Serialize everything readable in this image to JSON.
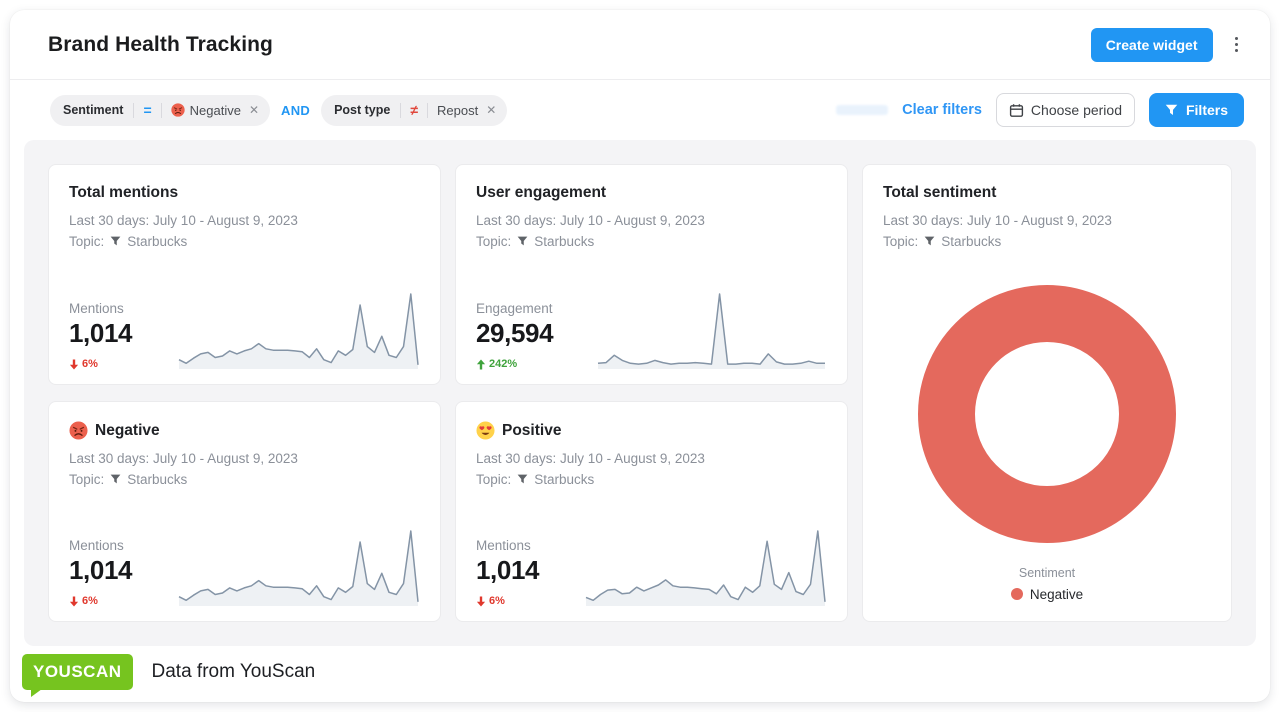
{
  "header": {
    "title": "Brand Health Tracking",
    "create_widget_label": "Create widget"
  },
  "filter_bar": {
    "chips": [
      {
        "field": "Sentiment",
        "operator": "=",
        "value": "Negative",
        "value_icon": "angry-face-emoji",
        "close": "✕"
      },
      {
        "field": "Post type",
        "operator": "≠",
        "value": "Repost",
        "close": "✕"
      }
    ],
    "conjunction": "AND",
    "clear_filters_label": "Clear filters",
    "choose_period_label": "Choose period",
    "filters_label": "Filters"
  },
  "widgets": {
    "total_mentions": {
      "title": "Total mentions",
      "period": "Last 30 days: July 10 - August 9, 2023",
      "topic_label": "Topic:",
      "topic": "Starbucks",
      "metric_label": "Mentions",
      "value": "1,014",
      "delta": "6%",
      "delta_direction": "down"
    },
    "user_engagement": {
      "title": "User engagement",
      "period": "Last 30 days: July 10 - August 9, 2023",
      "topic_label": "Topic:",
      "topic": "Starbucks",
      "metric_label": "Engagement",
      "value": "29,594",
      "delta": "242%",
      "delta_direction": "up"
    },
    "total_sentiment": {
      "title": "Total sentiment",
      "period": "Last 30 days: July 10 - August 9, 2023",
      "topic_label": "Topic:",
      "topic": "Starbucks",
      "legend_title": "Sentiment",
      "legend_items": [
        {
          "label": "Negative",
          "color": "#e4695d"
        }
      ]
    },
    "negative": {
      "title": "Negative",
      "emoji": "angry-face",
      "period": "Last 30 days: July 10 - August 9, 2023",
      "topic_label": "Topic:",
      "topic": "Starbucks",
      "metric_label": "Mentions",
      "value": "1,014",
      "delta": "6%",
      "delta_direction": "down"
    },
    "positive": {
      "title": "Positive",
      "emoji": "heart-eyes",
      "period": "Last 30 days: July 10 - August 9, 2023",
      "topic_label": "Topic:",
      "topic": "Starbucks",
      "metric_label": "Mentions",
      "value": "1,014",
      "delta": "6%",
      "delta_direction": "down"
    }
  },
  "chart_data": [
    {
      "type": "line",
      "name": "total-mentions-sparkline",
      "ylim": [
        0,
        1
      ],
      "values": [
        0.1,
        0.05,
        0.12,
        0.18,
        0.2,
        0.13,
        0.15,
        0.22,
        0.18,
        0.22,
        0.25,
        0.32,
        0.25,
        0.23,
        0.23,
        0.23,
        0.22,
        0.21,
        0.13,
        0.25,
        0.1,
        0.06,
        0.22,
        0.16,
        0.24,
        0.85,
        0.28,
        0.2,
        0.42,
        0.16,
        0.13,
        0.28,
        1.0,
        0.03
      ]
    },
    {
      "type": "line",
      "name": "user-engagement-sparkline",
      "ylim": [
        0,
        1
      ],
      "values": [
        0.05,
        0.06,
        0.16,
        0.09,
        0.05,
        0.04,
        0.05,
        0.09,
        0.06,
        0.04,
        0.05,
        0.05,
        0.06,
        0.05,
        0.04,
        1.0,
        0.04,
        0.04,
        0.05,
        0.05,
        0.04,
        0.18,
        0.07,
        0.04,
        0.04,
        0.05,
        0.08,
        0.05,
        0.05
      ]
    },
    {
      "type": "line",
      "name": "negative-mentions-sparkline",
      "ylim": [
        0,
        1
      ],
      "values": [
        0.1,
        0.05,
        0.12,
        0.18,
        0.2,
        0.13,
        0.15,
        0.22,
        0.18,
        0.22,
        0.25,
        0.32,
        0.25,
        0.23,
        0.23,
        0.23,
        0.22,
        0.21,
        0.13,
        0.25,
        0.1,
        0.06,
        0.22,
        0.16,
        0.24,
        0.85,
        0.28,
        0.2,
        0.42,
        0.16,
        0.13,
        0.28,
        1.0,
        0.03
      ]
    },
    {
      "type": "line",
      "name": "positive-mentions-sparkline",
      "ylim": [
        0,
        1
      ],
      "values": [
        0.09,
        0.05,
        0.13,
        0.19,
        0.2,
        0.14,
        0.15,
        0.23,
        0.18,
        0.22,
        0.26,
        0.33,
        0.25,
        0.23,
        0.23,
        0.22,
        0.21,
        0.2,
        0.14,
        0.26,
        0.1,
        0.06,
        0.23,
        0.16,
        0.25,
        0.86,
        0.27,
        0.2,
        0.43,
        0.17,
        0.13,
        0.27,
        1.0,
        0.03
      ]
    },
    {
      "type": "pie",
      "name": "total-sentiment-donut",
      "legend_title": "Sentiment",
      "slices": [
        {
          "label": "Negative",
          "value": 100,
          "color": "#e4695d"
        }
      ]
    }
  ],
  "footer": {
    "logo_text": "YOUSCAN",
    "caption": "Data from YouScan"
  },
  "colors": {
    "accent": "#2196f3",
    "link": "#2f96f5",
    "neq_red": "#e0483d",
    "donut": "#e4695d",
    "logo_green": "#76c41f",
    "delta_down": "#e0382d",
    "delta_up": "#3fa33c",
    "spark_line": "#8494a6",
    "spark_fill": "#eef1f4",
    "chip_bg": "#f0f0f2",
    "content_bg": "#f4f4f6",
    "card_border": "#ebebed",
    "text": "#1d1f23",
    "muted": "#8b9099"
  }
}
